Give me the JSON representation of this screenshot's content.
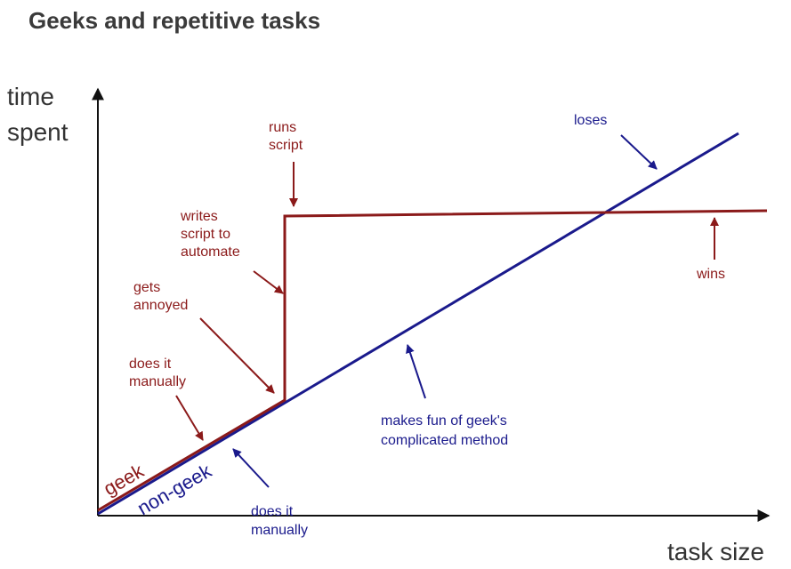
{
  "title": "Geeks and repetitive tasks",
  "axes": {
    "y_label": [
      "time",
      "spent"
    ],
    "x_label": "task size"
  },
  "lines": [
    {
      "label": "geek"
    },
    {
      "label": "non-geek"
    }
  ],
  "annotations": [
    {
      "lines": [
        "runs",
        "script"
      ]
    },
    {
      "lines": [
        "writes",
        "script to",
        "automate"
      ]
    },
    {
      "lines": [
        "gets",
        "annoyed"
      ]
    },
    {
      "lines": [
        "does it",
        "manually"
      ]
    },
    {
      "lines": [
        "loses"
      ]
    },
    {
      "lines": [
        "wins"
      ]
    },
    {
      "lines": [
        "makes fun of geek's",
        "complicated method"
      ]
    },
    {
      "lines": [
        "does it",
        "manually"
      ]
    }
  ]
}
